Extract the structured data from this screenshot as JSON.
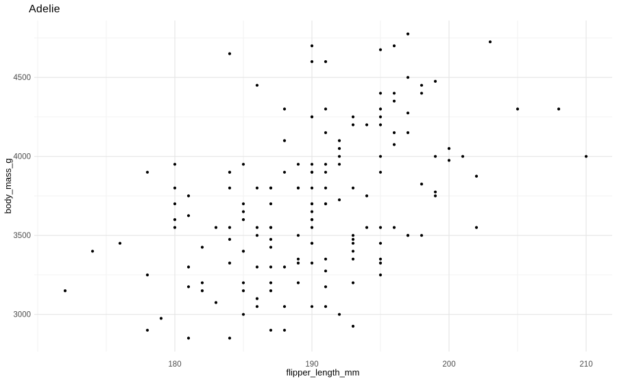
{
  "chart": {
    "title": "Adelie",
    "x_axis_title": "flipper_length_mm",
    "y_axis_title": "body_mass_g"
  },
  "chart_data": {
    "type": "scatter",
    "title": "Adelie",
    "xlabel": "flipper_length_mm",
    "ylabel": "body_mass_g",
    "legend": "none",
    "grid": "on",
    "xlim": [
      169.75,
      211.9
    ],
    "ylim": [
      2765,
      4860
    ],
    "x_major_ticks": [
      180,
      190,
      200,
      210
    ],
    "x_minor_ticks": [
      170,
      175,
      185,
      195,
      205
    ],
    "y_major_ticks": [
      3000,
      3500,
      4000,
      4500
    ],
    "y_minor_ticks": [
      3250,
      3750,
      4250,
      4750
    ],
    "colors": {
      "background": "#ffffff",
      "major_grid": "#e4e4e4",
      "minor_grid": "#f1f1f1",
      "point": "#000000",
      "tick_label": "#4d4d4d",
      "axis_title": "#000000",
      "title": "#000000"
    },
    "point_radius": 2.1,
    "points": [
      [
        181,
        3750
      ],
      [
        186,
        3800
      ],
      [
        195,
        3250
      ],
      [
        193,
        3450
      ],
      [
        190,
        3650
      ],
      [
        181,
        3625
      ],
      [
        195,
        4675
      ],
      [
        193,
        3475
      ],
      [
        190,
        4250
      ],
      [
        186,
        3300
      ],
      [
        180,
        3700
      ],
      [
        182,
        3200
      ],
      [
        191,
        3800
      ],
      [
        198,
        4400
      ],
      [
        185,
        3700
      ],
      [
        195,
        3450
      ],
      [
        197,
        4500
      ],
      [
        184,
        3325
      ],
      [
        194,
        4200
      ],
      [
        174,
        3400
      ],
      [
        180,
        3600
      ],
      [
        189,
        3800
      ],
      [
        185,
        3950
      ],
      [
        180,
        3800
      ],
      [
        187,
        3800
      ],
      [
        183,
        3550
      ],
      [
        187,
        3200
      ],
      [
        172,
        3150
      ],
      [
        180,
        3950
      ],
      [
        178,
        3250
      ],
      [
        178,
        3900
      ],
      [
        188,
        3300
      ],
      [
        184,
        3900
      ],
      [
        195,
        3325
      ],
      [
        196,
        4150
      ],
      [
        190,
        3950
      ],
      [
        180,
        3550
      ],
      [
        181,
        3300
      ],
      [
        184,
        4650
      ],
      [
        182,
        3150
      ],
      [
        195,
        3900
      ],
      [
        186,
        3100
      ],
      [
        196,
        4400
      ],
      [
        185,
        3000
      ],
      [
        190,
        4600
      ],
      [
        182,
        3425
      ],
      [
        179,
        2975
      ],
      [
        190,
        3450
      ],
      [
        191,
        4150
      ],
      [
        186,
        3500
      ],
      [
        188,
        4300
      ],
      [
        190,
        3450
      ],
      [
        200,
        4050
      ],
      [
        187,
        2900
      ],
      [
        191,
        3700
      ],
      [
        186,
        3550
      ],
      [
        193,
        3800
      ],
      [
        181,
        2850
      ],
      [
        194,
        3750
      ],
      [
        185,
        3150
      ],
      [
        195,
        4400
      ],
      [
        185,
        3600
      ],
      [
        192,
        4050
      ],
      [
        184,
        2850
      ],
      [
        192,
        3950
      ],
      [
        195,
        3350
      ],
      [
        188,
        4100
      ],
      [
        190,
        3050
      ],
      [
        198,
        4450
      ],
      [
        190,
        3600
      ],
      [
        190,
        3900
      ],
      [
        196,
        3550
      ],
      [
        197,
        4150
      ],
      [
        190,
        3700
      ],
      [
        195,
        4250
      ],
      [
        191,
        3700
      ],
      [
        184,
        3900
      ],
      [
        187,
        3550
      ],
      [
        195,
        4000
      ],
      [
        189,
        3200
      ],
      [
        196,
        4700
      ],
      [
        187,
        3800
      ],
      [
        193,
        4200
      ],
      [
        191,
        3350
      ],
      [
        194,
        3550
      ],
      [
        190,
        3800
      ],
      [
        189,
        3500
      ],
      [
        189,
        3950
      ],
      [
        190,
        3600
      ],
      [
        202,
        3550
      ],
      [
        205,
        4300
      ],
      [
        185,
        3400
      ],
      [
        186,
        4450
      ],
      [
        187,
        3300
      ],
      [
        208,
        4300
      ],
      [
        190,
        3700
      ],
      [
        196,
        4350
      ],
      [
        178,
        2900
      ],
      [
        192,
        4100
      ],
      [
        192,
        3725
      ],
      [
        203,
        4725
      ],
      [
        183,
        3075
      ],
      [
        190,
        4250
      ],
      [
        193,
        2925
      ],
      [
        184,
        3550
      ],
      [
        199,
        3750
      ],
      [
        190,
        3900
      ],
      [
        181,
        3175
      ],
      [
        197,
        4775
      ],
      [
        198,
        3825
      ],
      [
        191,
        4600
      ],
      [
        193,
        3200
      ],
      [
        197,
        4275
      ],
      [
        191,
        3900
      ],
      [
        196,
        4075
      ],
      [
        188,
        2900
      ],
      [
        199,
        3775
      ],
      [
        189,
        3350
      ],
      [
        189,
        3325
      ],
      [
        187,
        3150
      ],
      [
        198,
        3500
      ],
      [
        176,
        3450
      ],
      [
        202,
        3875
      ],
      [
        186,
        3050
      ],
      [
        199,
        4000
      ],
      [
        191,
        3275
      ],
      [
        195,
        4300
      ],
      [
        191,
        3050
      ],
      [
        210,
        4000
      ],
      [
        190,
        3325
      ],
      [
        197,
        3500
      ],
      [
        193,
        3500
      ],
      [
        199,
        4475
      ],
      [
        187,
        3425
      ],
      [
        190,
        3900
      ],
      [
        191,
        3175
      ],
      [
        200,
        3975
      ],
      [
        185,
        3400
      ],
      [
        193,
        4250
      ],
      [
        193,
        3400
      ],
      [
        187,
        3475
      ],
      [
        188,
        3900
      ],
      [
        190,
        3550
      ],
      [
        192,
        4000
      ],
      [
        185,
        3200
      ],
      [
        190,
        4700
      ],
      [
        184,
        3800
      ],
      [
        195,
        4200
      ],
      [
        193,
        3350
      ],
      [
        187,
        3550
      ],
      [
        189,
        3800
      ],
      [
        197,
        3500
      ],
      [
        191,
        3950
      ],
      [
        195,
        3550
      ],
      [
        191,
        4300
      ],
      [
        201,
        4000
      ],
      [
        188,
        3050
      ],
      [
        192,
        3000
      ],
      [
        185,
        3650
      ],
      [
        184,
        3475
      ],
      [
        187,
        3700
      ]
    ]
  }
}
